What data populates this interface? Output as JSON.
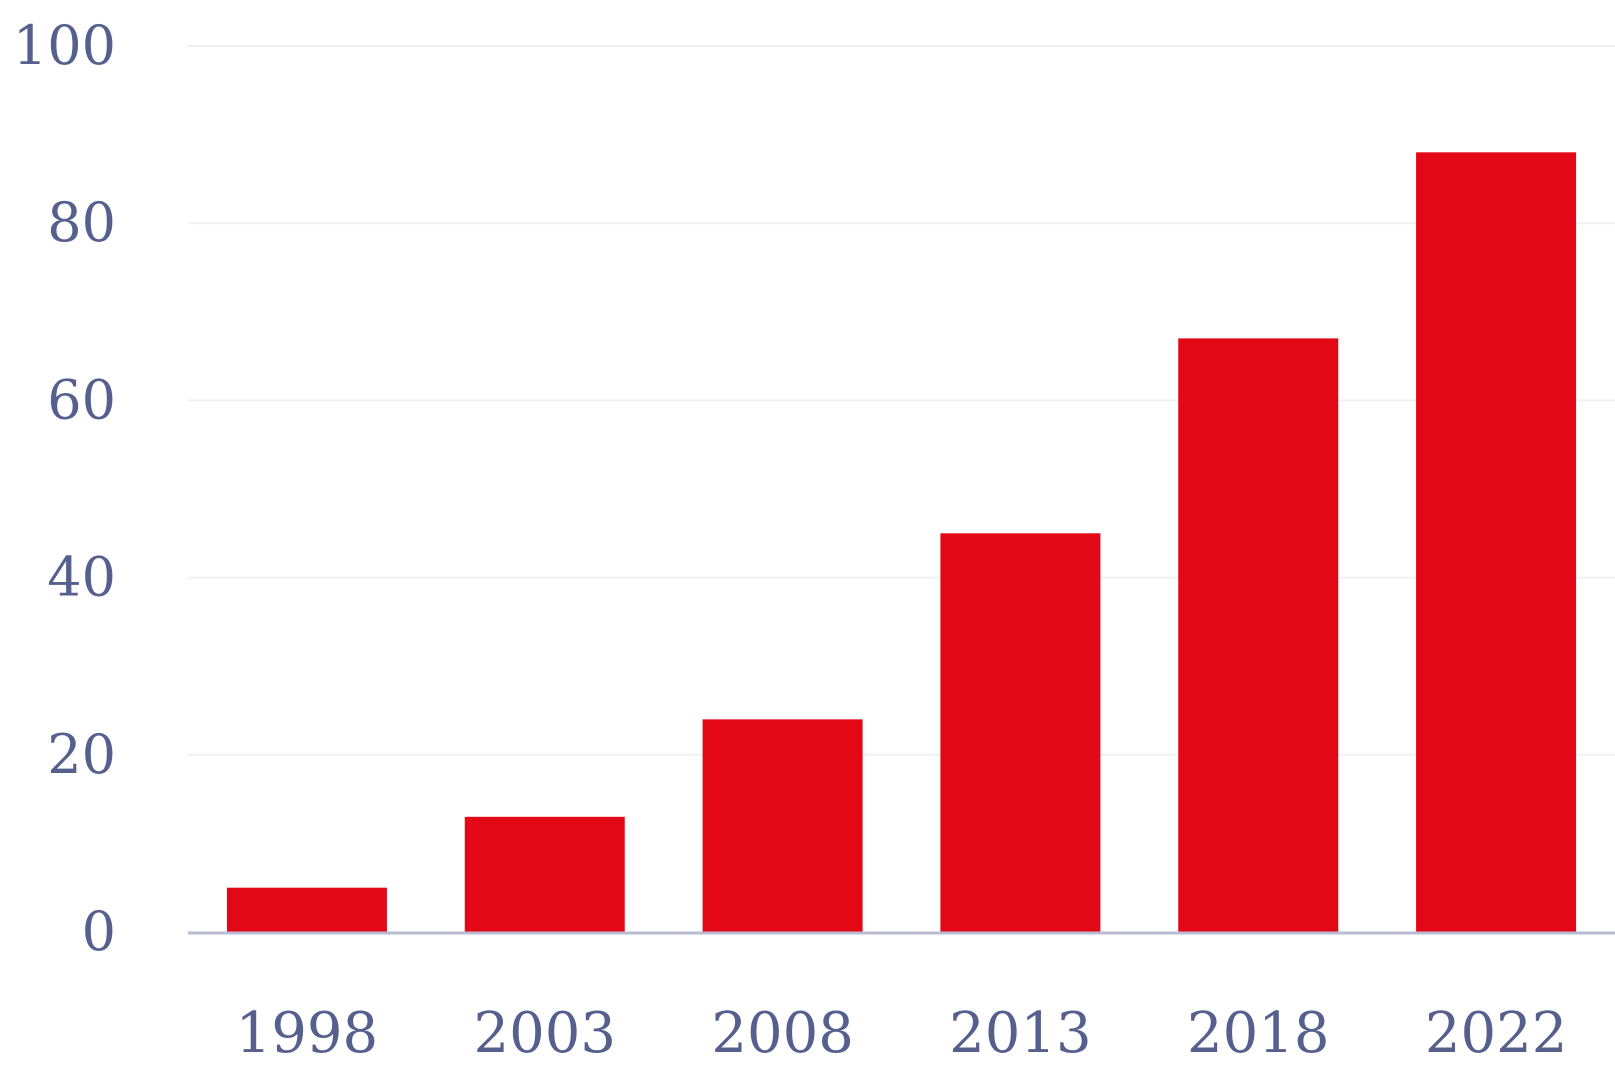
{
  "chart_data": {
    "type": "bar",
    "title": "",
    "xlabel": "",
    "ylabel": "",
    "categories": [
      "1998",
      "2003",
      "2008",
      "2013",
      "2018",
      "2022"
    ],
    "values": [
      5,
      13,
      24,
      45,
      67,
      88
    ],
    "ylim": [
      0,
      100
    ],
    "yticks": [
      0,
      20,
      40,
      60,
      80,
      100
    ],
    "ytick_labels": [
      "0",
      "20",
      "40",
      "60",
      "80",
      "100"
    ],
    "grid": true,
    "legend": "none",
    "colors": {
      "bar": "#e20816",
      "text": "#56608f",
      "grid": "#f1f1f4",
      "axis": "#b9bcd2"
    }
  }
}
